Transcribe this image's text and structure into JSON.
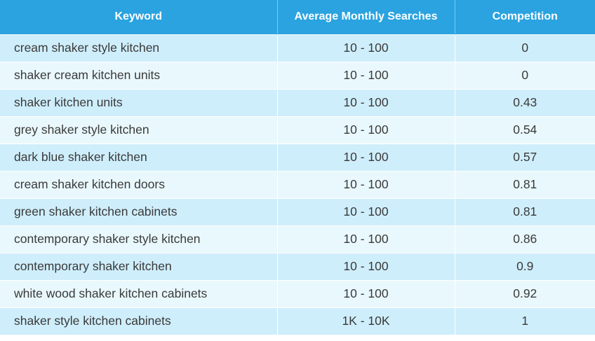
{
  "table": {
    "headers": {
      "keyword": "Keyword",
      "searches": "Average Monthly Searches",
      "competition": "Competition"
    },
    "rows": [
      {
        "keyword": "cream shaker style kitchen",
        "searches": "10 - 100",
        "competition": "0"
      },
      {
        "keyword": "shaker cream kitchen units",
        "searches": "10 - 100",
        "competition": "0"
      },
      {
        "keyword": "shaker kitchen units",
        "searches": "10 - 100",
        "competition": "0.43"
      },
      {
        "keyword": "grey shaker style kitchen",
        "searches": "10 - 100",
        "competition": "0.54"
      },
      {
        "keyword": "dark blue shaker kitchen",
        "searches": "10 - 100",
        "competition": "0.57"
      },
      {
        "keyword": "cream shaker kitchen doors",
        "searches": "10 - 100",
        "competition": "0.81"
      },
      {
        "keyword": "green shaker kitchen cabinets",
        "searches": "10 - 100",
        "competition": "0.81"
      },
      {
        "keyword": "contemporary shaker style kitchen",
        "searches": "10 - 100",
        "competition": "0.86"
      },
      {
        "keyword": "contemporary shaker kitchen",
        "searches": "10 - 100",
        "competition": "0.9"
      },
      {
        "keyword": "white wood shaker kitchen cabinets",
        "searches": "10 - 100",
        "competition": "0.92"
      },
      {
        "keyword": "shaker style kitchen cabinets",
        "searches": "1K - 10K",
        "competition": "1"
      }
    ]
  },
  "colors": {
    "header_bg": "#2aa3e0",
    "row_odd_bg": "#cfeefb",
    "row_even_bg": "#e9f8fd"
  }
}
